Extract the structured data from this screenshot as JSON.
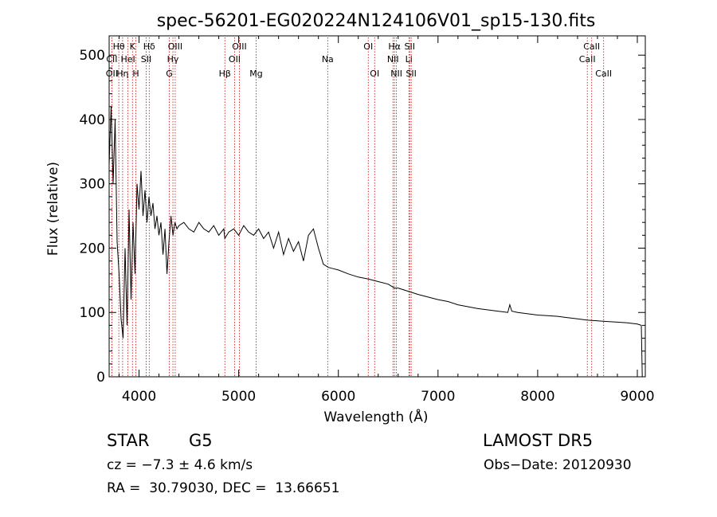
{
  "chart_data": {
    "type": "line",
    "title": "spec-56201-EG020224N124106V01_sp15-130.fits",
    "xlabel": "Wavelength (Å)",
    "ylabel": "Flux (relative)",
    "xlim": [
      3700,
      9080
    ],
    "ylim": [
      0,
      530
    ],
    "x_ticks": [
      4000,
      5000,
      6000,
      7000,
      8000,
      9000
    ],
    "y_ticks": [
      0,
      100,
      200,
      300,
      400,
      500
    ],
    "grid": false,
    "series": [
      {
        "x": [
          3700,
          3720,
          3740,
          3760,
          3780,
          3800,
          3820,
          3840,
          3860,
          3880,
          3900,
          3920,
          3940,
          3960,
          3980,
          4000,
          4020,
          4040,
          4060,
          4080,
          4100,
          4120,
          4140,
          4160,
          4180,
          4200,
          4220,
          4240,
          4260,
          4280,
          4300,
          4320,
          4340,
          4360,
          4380,
          4400,
          4450,
          4500,
          4550,
          4600,
          4650,
          4700,
          4750,
          4800,
          4850,
          4861,
          4900,
          4950,
          5000,
          5050,
          5100,
          5150,
          5200,
          5250,
          5300,
          5350,
          5400,
          5450,
          5500,
          5550,
          5600,
          5650,
          5700,
          5750,
          5800,
          5850,
          5900,
          5950,
          6000,
          6100,
          6200,
          6300,
          6400,
          6500,
          6563,
          6600,
          6700,
          6800,
          6900,
          7000,
          7100,
          7200,
          7300,
          7400,
          7500,
          7600,
          7700,
          7720,
          7740,
          7800,
          7900,
          8000,
          8100,
          8200,
          8300,
          8400,
          8500,
          8600,
          8700,
          8800,
          8900,
          9000,
          9040,
          9050
        ],
        "values": [
          330,
          420,
          300,
          400,
          210,
          160,
          90,
          60,
          200,
          80,
          260,
          120,
          240,
          160,
          300,
          260,
          320,
          250,
          290,
          240,
          280,
          250,
          270,
          230,
          250,
          220,
          240,
          190,
          230,
          160,
          210,
          250,
          220,
          240,
          230,
          235,
          240,
          230,
          225,
          240,
          230,
          225,
          235,
          220,
          230,
          215,
          225,
          230,
          220,
          235,
          225,
          220,
          230,
          215,
          225,
          200,
          225,
          190,
          215,
          195,
          210,
          180,
          220,
          230,
          200,
          175,
          170,
          168,
          166,
          160,
          155,
          152,
          148,
          144,
          138,
          138,
          133,
          128,
          124,
          120,
          117,
          112,
          109,
          106,
          104,
          102,
          100,
          112,
          102,
          100,
          98,
          96,
          95,
          94,
          92,
          90,
          88,
          87,
          86,
          85,
          84,
          82,
          80,
          0
        ]
      }
    ],
    "line_markers": [
      {
        "label": "Hθ",
        "x": 3797
      },
      {
        "label": "K",
        "x": 3934
      },
      {
        "label": "Hδ",
        "x": 4102
      },
      {
        "label": "OIII",
        "x": 4363
      },
      {
        "label": "OIII",
        "x": 5007
      },
      {
        "label": "OI",
        "x": 6300
      },
      {
        "label": "Hα",
        "x": 6563
      },
      {
        "label": "SII",
        "x": 6716
      },
      {
        "label": "CaII",
        "x": 8542
      },
      {
        "label": "CII",
        "x": 3727
      },
      {
        "label": "HeI",
        "x": 3889
      },
      {
        "label": "SII",
        "x": 4072
      },
      {
        "label": "Hγ",
        "x": 4340
      },
      {
        "label": "OII",
        "x": 4959
      },
      {
        "label": "Na",
        "x": 5893
      },
      {
        "label": "NII",
        "x": 6548
      },
      {
        "label": "Li",
        "x": 6708
      },
      {
        "label": "CaII",
        "x": 8498
      },
      {
        "label": "OII",
        "x": 3727
      },
      {
        "label": "Hη",
        "x": 3835
      },
      {
        "label": "H",
        "x": 3968
      },
      {
        "label": "G",
        "x": 4304
      },
      {
        "label": "Hβ",
        "x": 4861
      },
      {
        "label": "Mg",
        "x": 5175
      },
      {
        "label": "OI",
        "x": 6364
      },
      {
        "label": "NII",
        "x": 6583
      },
      {
        "label": "SII",
        "x": 6731
      },
      {
        "label": "CaII",
        "x": 8662
      }
    ]
  },
  "info": {
    "class_label": "STAR",
    "subclass": "G5",
    "survey": "LAMOST DR5",
    "velocity": "cz = −7.3 ± 4.6 km/s",
    "obs_date": "Obs−Date: 20120930",
    "coords": "RA =  30.79030, DEC =  13.66651"
  },
  "colors": {
    "axis": "#000000",
    "spectrum": "#000000",
    "marker_line": "#cc0000",
    "background": "#ffffff"
  }
}
